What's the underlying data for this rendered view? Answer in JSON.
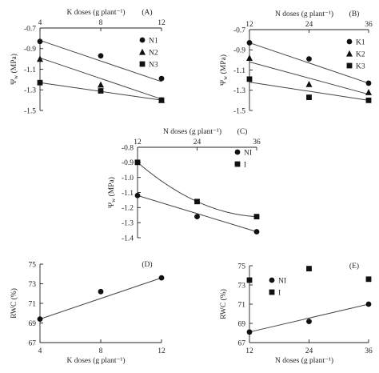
{
  "chart_data": [
    {
      "id": "A",
      "type": "scatter",
      "panel_label": "(A)",
      "xlabel": "K doses (g plant⁻¹)",
      "ylabel": "Ψ",
      "ylabel_sub": "w",
      "ylabel_unit": " (MPa)",
      "x_axis_position": "top",
      "xlim": [
        4,
        12
      ],
      "ylim": [
        -1.5,
        -0.7
      ],
      "xticks": [
        4,
        8,
        12
      ],
      "xtick_labels": [
        "4",
        "8",
        "12"
      ],
      "yticks": [
        -0.7,
        -0.9,
        -1.1,
        -1.3,
        -1.5
      ],
      "ytick_labels": [
        "-0.7",
        "-0.9",
        "-1.1",
        "-1.3",
        "-1.5"
      ],
      "legend_placement": "top-right",
      "series": [
        {
          "name": "N1",
          "marker": "circle",
          "x": [
            4,
            8,
            12
          ],
          "y": [
            -0.83,
            -0.97,
            -1.19
          ],
          "fit": "linear",
          "fit_y": [
            -0.82,
            -1.02,
            -1.22
          ]
        },
        {
          "name": "N2",
          "marker": "triangle",
          "x": [
            4,
            8,
            12
          ],
          "y": [
            -1.0,
            -1.25,
            -1.4
          ],
          "fit": "linear",
          "fit_y": [
            -0.99,
            -1.19,
            -1.39
          ]
        },
        {
          "name": "N3",
          "marker": "square",
          "x": [
            4,
            8,
            12
          ],
          "y": [
            -1.23,
            -1.31,
            -1.4
          ],
          "fit": "linear",
          "fit_y": [
            -1.23,
            -1.315,
            -1.4
          ]
        }
      ]
    },
    {
      "id": "B",
      "type": "scatter",
      "panel_label": "(B)",
      "xlabel": "N doses (g plant⁻¹)",
      "ylabel": "Ψ",
      "ylabel_sub": "w",
      "ylabel_unit": " (MPa)",
      "x_axis_position": "top",
      "xlim": [
        12,
        36
      ],
      "ylim": [
        -1.5,
        -0.7
      ],
      "xticks": [
        12,
        24,
        36
      ],
      "xtick_labels": [
        "12",
        "24",
        "36"
      ],
      "yticks": [
        -0.7,
        -0.9,
        -1.1,
        -1.3,
        -1.5
      ],
      "ytick_labels": [
        "-0.7",
        "-0.9",
        "-1.1",
        "-1.3",
        "-1.5"
      ],
      "legend_placement": "top-right",
      "series": [
        {
          "name": "K1",
          "marker": "circle",
          "x": [
            12,
            24,
            36
          ],
          "y": [
            -0.83,
            -0.99,
            -1.23
          ],
          "fit": "linear",
          "fit_y": [
            -0.83,
            -1.03,
            -1.23
          ]
        },
        {
          "name": "K2",
          "marker": "triangle",
          "x": [
            12,
            24,
            36
          ],
          "y": [
            -0.98,
            -1.24,
            -1.32
          ],
          "fit": "linear",
          "fit_y": [
            -1.02,
            -1.18,
            -1.34
          ]
        },
        {
          "name": "K3",
          "marker": "square",
          "x": [
            12,
            24,
            36
          ],
          "y": [
            -1.19,
            -1.37,
            -1.4
          ],
          "fit": "linear",
          "fit_y": [
            -1.22,
            -1.31,
            -1.4
          ]
        }
      ]
    },
    {
      "id": "C",
      "type": "scatter",
      "panel_label": "(C)",
      "xlabel": "N doses (g plant⁻¹)",
      "ylabel": "Ψ",
      "ylabel_sub": "w",
      "ylabel_unit": " (MPa)",
      "x_axis_position": "top",
      "xlim": [
        12,
        36
      ],
      "ylim": [
        -1.4,
        -0.8
      ],
      "xticks": [
        12,
        24,
        36
      ],
      "xtick_labels": [
        "12",
        "24",
        "36"
      ],
      "yticks": [
        -0.8,
        -0.9,
        -1.0,
        -1.1,
        -1.2,
        -1.3,
        -1.4
      ],
      "ytick_labels": [
        "-0.8",
        "-0.9",
        "-1.0",
        "-1.1",
        "-1.2",
        "-1.3",
        "-1.4"
      ],
      "legend_placement": "top-right",
      "series": [
        {
          "name": "NI",
          "marker": "circle",
          "x": [
            12,
            24,
            36
          ],
          "y": [
            -1.12,
            -1.26,
            -1.36
          ],
          "fit": "linear",
          "fit_y": [
            -1.12,
            -1.24,
            -1.36
          ]
        },
        {
          "name": "I",
          "marker": "square",
          "x": [
            12,
            24,
            36
          ],
          "y": [
            -0.9,
            -1.16,
            -1.26
          ],
          "fit": "quadratic",
          "fit_y": [
            -0.9,
            -1.16,
            -1.26
          ]
        }
      ]
    },
    {
      "id": "D",
      "type": "scatter",
      "panel_label": "(D)",
      "xlabel": "K doses (g plant⁻¹)",
      "ylabel": "RWC (%)",
      "x_axis_position": "bottom",
      "xlim": [
        4,
        12
      ],
      "ylim": [
        67,
        75
      ],
      "xticks": [
        4,
        8,
        12
      ],
      "xtick_labels": [
        "4",
        "8",
        "12"
      ],
      "yticks": [
        67,
        69,
        71,
        73,
        75
      ],
      "ytick_labels": [
        "67",
        "69",
        "71",
        "73",
        "75"
      ],
      "series": [
        {
          "marker": "circle",
          "x": [
            4,
            8,
            12
          ],
          "y": [
            69.4,
            72.2,
            73.6
          ],
          "fit": "linear",
          "fit_y": [
            69.4,
            71.5,
            73.6
          ]
        }
      ]
    },
    {
      "id": "E",
      "type": "scatter",
      "panel_label": "(E)",
      "xlabel": "N doses (g plant⁻¹)",
      "ylabel": "RWC (%)",
      "x_axis_position": "bottom",
      "xlim": [
        12,
        36
      ],
      "ylim": [
        67,
        75
      ],
      "xticks": [
        12,
        24,
        36
      ],
      "xtick_labels": [
        "12",
        "24",
        "36"
      ],
      "yticks": [
        67,
        69,
        71,
        73,
        75
      ],
      "ytick_labels": [
        "67",
        "69",
        "71",
        "73",
        "75"
      ],
      "legend_placement": "top-left",
      "series": [
        {
          "name": "NI",
          "marker": "circle",
          "x": [
            12,
            24,
            36
          ],
          "y": [
            68.1,
            69.2,
            71.0
          ],
          "fit": "linear",
          "fit_y": [
            68.1,
            69.55,
            71.0
          ]
        },
        {
          "name": "I",
          "marker": "square",
          "x": [
            12,
            24,
            36
          ],
          "y": [
            73.5,
            74.7,
            73.6
          ]
        }
      ]
    }
  ]
}
